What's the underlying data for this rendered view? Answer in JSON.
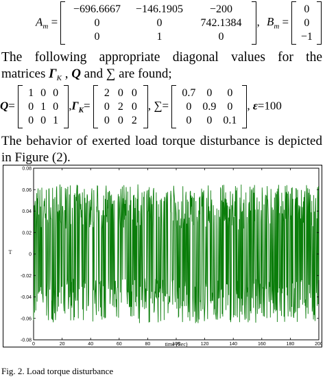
{
  "eq1": {
    "a_label": "A",
    "a_sub": "m",
    "a_matrix": [
      [
        "−696.6667",
        "−146.1905",
        "−200"
      ],
      [
        "0",
        "0",
        "742.1384"
      ],
      [
        "0",
        "1",
        "0"
      ]
    ],
    "sep": ",",
    "b_label": "B",
    "b_sub": "m",
    "b_matrix": [
      [
        "0"
      ],
      [
        "0"
      ],
      [
        "−1"
      ]
    ]
  },
  "paragraph1": {
    "line1": "The following appropriate diagonal values for the",
    "line2_text_a": "matrices",
    "gamma": "Γ",
    "gamma_sub": "K",
    "comma": ",",
    "q": "Q",
    "and": "and",
    "sigma": "∑",
    "line2_text_b": "are found;"
  },
  "eq2": {
    "q_label": "Q",
    "q_matrix": [
      [
        "1",
        "0",
        "0"
      ],
      [
        "0",
        "1",
        "0"
      ],
      [
        "0",
        "0",
        "1"
      ]
    ],
    "gamma_label": "Γ",
    "gamma_sub": "K",
    "gamma_matrix": [
      [
        "2",
        "0",
        "0"
      ],
      [
        "0",
        "2",
        "0"
      ],
      [
        "0",
        "0",
        "2"
      ]
    ],
    "sigma_label": "∑",
    "sigma_matrix": [
      [
        "0.7",
        "0",
        "0"
      ],
      [
        "0",
        "0.9",
        "0"
      ],
      [
        "0",
        "0",
        "0.1"
      ]
    ],
    "eps_label": "ε",
    "eps_value": "100",
    "equals": "="
  },
  "paragraph2": {
    "line1": "The behavior of exerted load torque disturbance is depicted",
    "line2": "in Figure (2)."
  },
  "caption": "Fig. 2.   Load torque disturbance",
  "chart_data": {
    "type": "line",
    "title": "",
    "xlabel": "time (Sec)",
    "ylabel": "T",
    "xlim": [
      0,
      200
    ],
    "ylim": [
      -0.08,
      0.08
    ],
    "x_ticks": [
      "0",
      "20",
      "40",
      "60",
      "80",
      "100",
      "120",
      "140",
      "160",
      "180",
      "200"
    ],
    "y_ticks": [
      "0.08",
      "0.06",
      "0.04",
      "0.02",
      "0",
      "-0.02",
      "-0.04",
      "-0.06",
      "-0.08"
    ],
    "series": [
      {
        "color": "#0a7d0a",
        "description_range": [
          -0.065,
          0.065
        ],
        "x": [
          0,
          2,
          4,
          6,
          8,
          10,
          12,
          14,
          16,
          18,
          20,
          22,
          24,
          26,
          28,
          30,
          32,
          34,
          36,
          38,
          40,
          42,
          44,
          46,
          48,
          50,
          52,
          54,
          56,
          58,
          60,
          62,
          64,
          66,
          68,
          70,
          72,
          74,
          76,
          78,
          80,
          82,
          84,
          86,
          88,
          90,
          92,
          94,
          96,
          98,
          100,
          102,
          104,
          106,
          108,
          110,
          112,
          114,
          116,
          118,
          120,
          122,
          124,
          126,
          128,
          130,
          132,
          134,
          136,
          138,
          140,
          142,
          144,
          146,
          148,
          150,
          152,
          154,
          156,
          158,
          160,
          162,
          164,
          166,
          168,
          170,
          172,
          174,
          176,
          178,
          180,
          182,
          184,
          186,
          188,
          190,
          192,
          194,
          196,
          198,
          200
        ],
        "y": [
          0.02,
          -0.06,
          0.065,
          -0.04,
          0.05,
          -0.065,
          0.03,
          -0.055,
          0.06,
          -0.02,
          0.062,
          -0.063,
          0.045,
          -0.05,
          0.058,
          -0.064,
          0.04,
          -0.06,
          0.064,
          -0.035,
          0.055,
          -0.062,
          0.06,
          -0.045,
          0.05,
          -0.065,
          0.062,
          -0.05,
          0.063,
          -0.06,
          0.04,
          -0.064,
          0.065,
          -0.055,
          0.05,
          -0.06,
          0.058,
          -0.063,
          0.045,
          -0.065,
          0.062,
          -0.05,
          0.064,
          -0.058,
          0.03,
          -0.065,
          0.06,
          -0.04,
          0.063,
          -0.062,
          0.055,
          -0.06,
          0.065,
          -0.05,
          0.048,
          -0.064,
          0.06,
          -0.063,
          0.062,
          -0.045,
          0.05,
          -0.065,
          0.064,
          -0.055,
          0.058,
          -0.06,
          0.04,
          -0.062,
          0.065,
          -0.05,
          0.06,
          -0.064,
          0.055,
          -0.063,
          0.062,
          -0.058,
          0.045,
          -0.065,
          0.063,
          -0.06,
          0.05,
          -0.062,
          0.065,
          -0.055,
          0.06,
          -0.064,
          0.058,
          -0.05,
          0.063,
          -0.065,
          0.04,
          -0.06,
          0.062,
          -0.063,
          0.055,
          -0.058,
          0.064,
          -0.045,
          0.06,
          -0.065,
          0.03
        ]
      }
    ]
  }
}
